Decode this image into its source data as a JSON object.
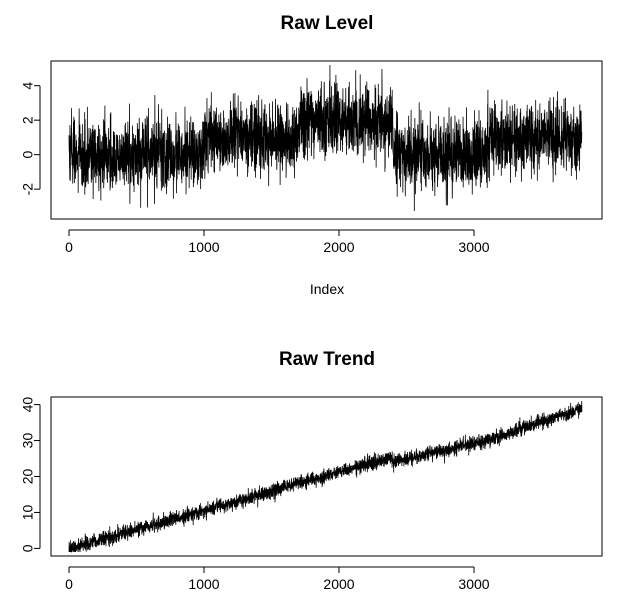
{
  "chart_data": [
    {
      "type": "line",
      "title": "Raw Level",
      "xlabel": "Index",
      "ylabel": "",
      "xlim": [
        0,
        3800
      ],
      "ylim": [
        -3.5,
        5.2
      ],
      "xticks": [
        0,
        1000,
        2000,
        3000
      ],
      "xtick_labels": [
        "0",
        "1000",
        "2000",
        "3000"
      ],
      "yticks": [
        -2,
        0,
        2,
        4
      ],
      "ytick_labels": [
        "-2",
        "0",
        "2",
        "4"
      ],
      "n_points": 3800,
      "segments": [
        {
          "x_start": 0,
          "x_end": 1000,
          "mean": 0.0,
          "spread": 1.0
        },
        {
          "x_start": 1000,
          "x_end": 1700,
          "mean": 1.0,
          "spread": 1.0
        },
        {
          "x_start": 1700,
          "x_end": 2400,
          "mean": 2.0,
          "spread": 1.0
        },
        {
          "x_start": 2400,
          "x_end": 3100,
          "mean": 0.0,
          "spread": 1.0
        },
        {
          "x_start": 3100,
          "x_end": 3800,
          "mean": 1.0,
          "spread": 1.0
        }
      ],
      "grid": false,
      "legend": "none"
    },
    {
      "type": "line",
      "title": "Raw Trend",
      "xlabel": "",
      "ylabel": "",
      "xlim": [
        0,
        3800
      ],
      "ylim": [
        -1,
        41
      ],
      "xticks": [
        0,
        1000,
        2000,
        3000
      ],
      "xtick_labels": [
        "0",
        "1000",
        "2000",
        "3000"
      ],
      "yticks": [
        0,
        10,
        20,
        30,
        40
      ],
      "ytick_labels": [
        "0",
        "10",
        "20",
        "30",
        "40"
      ],
      "n_points": 3800,
      "trend": [
        {
          "x": 0,
          "y": 0
        },
        {
          "x": 1000,
          "y": 10.5
        },
        {
          "x": 1700,
          "y": 18
        },
        {
          "x": 2400,
          "y": 25.5
        },
        {
          "x": 2400,
          "y": 24
        },
        {
          "x": 3100,
          "y": 30
        },
        {
          "x": 3800,
          "y": 39
        }
      ],
      "spread": 1.0,
      "grid": false,
      "legend": "none"
    }
  ]
}
